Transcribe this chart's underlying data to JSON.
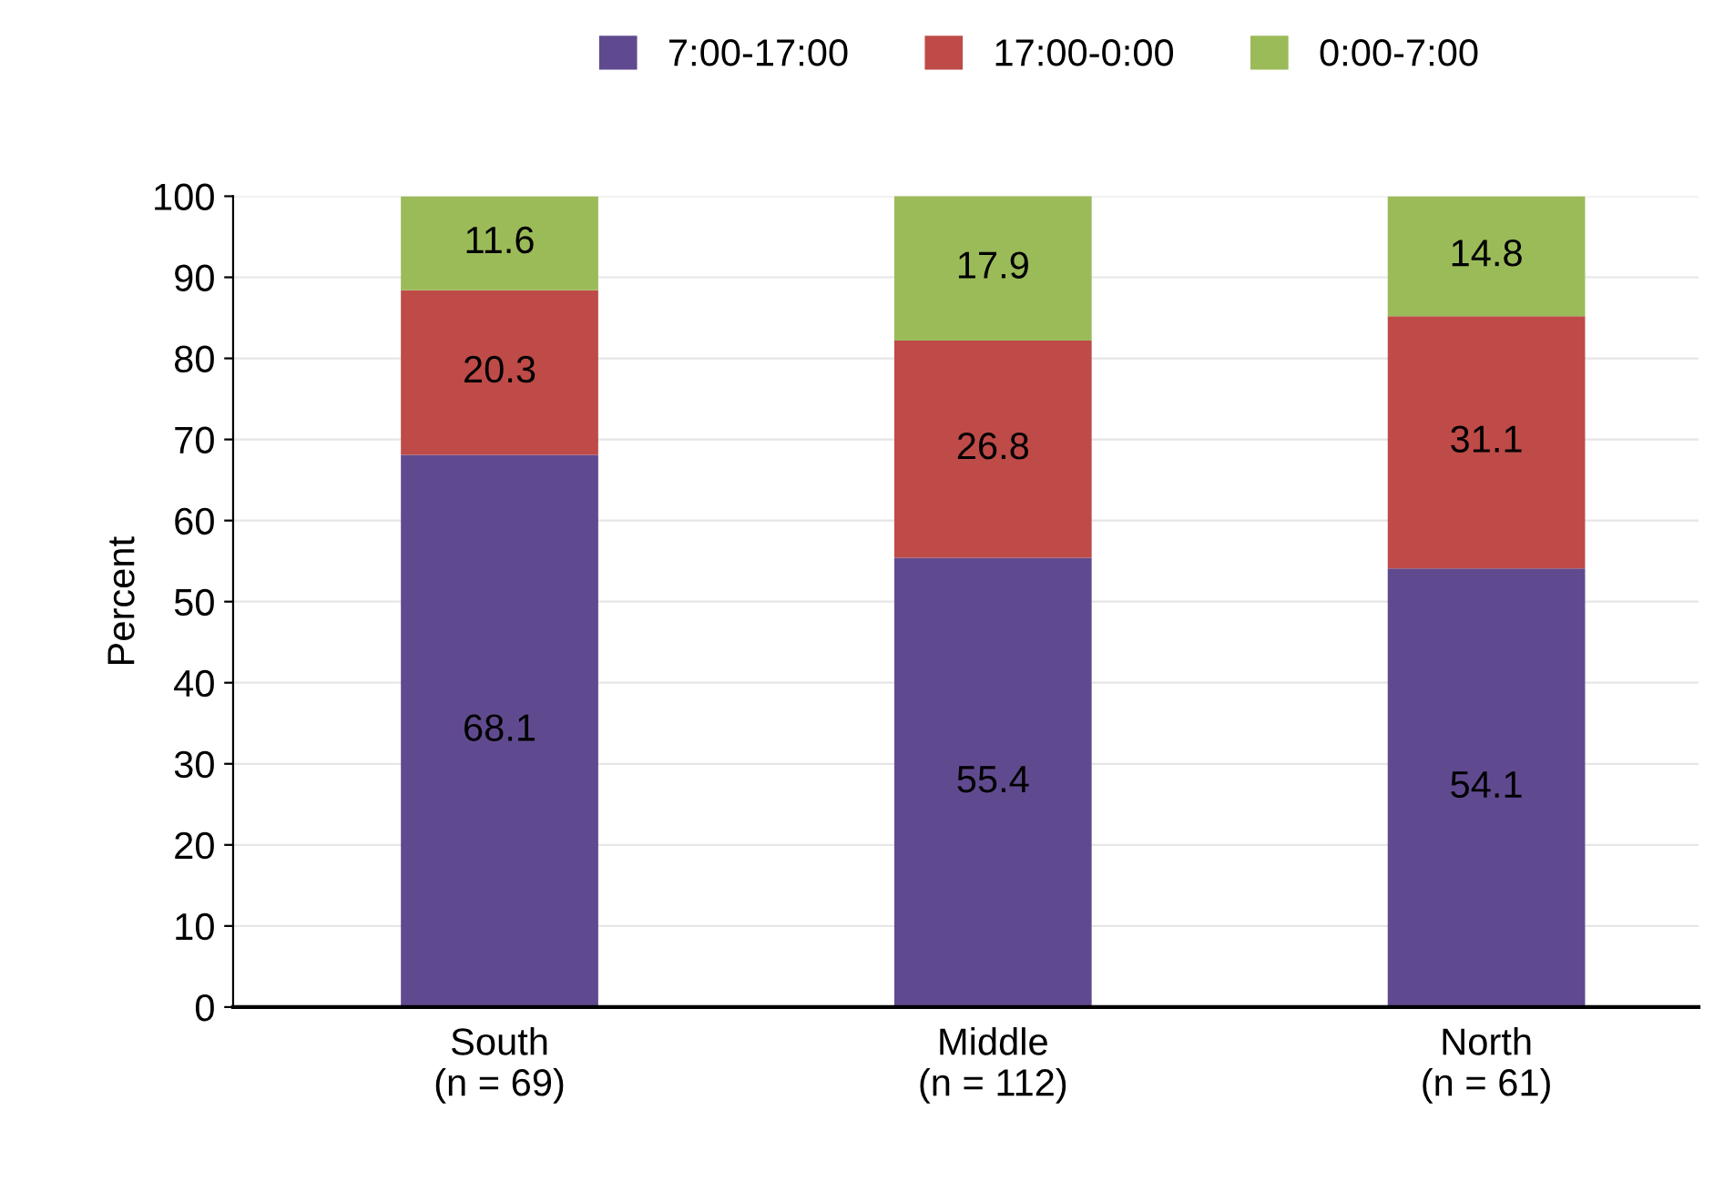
{
  "chart_data": {
    "type": "bar",
    "stacked": true,
    "ylabel": "Percent",
    "categories": [
      "South\n(n = 69)",
      "Middle\n(n = 112)",
      "North\n(n = 61)"
    ],
    "series": [
      {
        "name": "7:00-17:00",
        "color": "#604a8f",
        "values": [
          68.1,
          55.4,
          54.1
        ]
      },
      {
        "name": "17:00-0:00",
        "color": "#be4b48",
        "values": [
          20.3,
          26.8,
          31.1
        ]
      },
      {
        "name": "0:00-7:00",
        "color": "#9bbb59",
        "values": [
          11.6,
          17.9,
          14.8
        ]
      }
    ],
    "ylim": [
      0,
      100
    ],
    "yticks": [
      0,
      10,
      20,
      30,
      40,
      50,
      60,
      70,
      80,
      90,
      100
    ],
    "grid": "y",
    "legend": "top",
    "data_labels": true
  }
}
